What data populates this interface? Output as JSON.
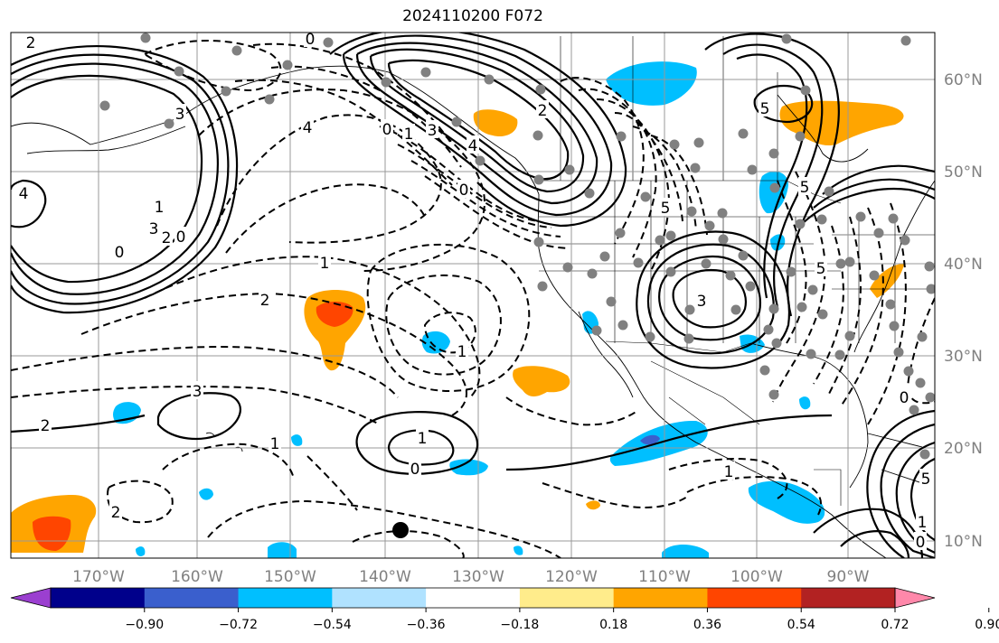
{
  "chart_data": {
    "type": "contour map",
    "title": "2024110200 F072",
    "x_ticks": [
      "170°W",
      "160°W",
      "150°W",
      "140°W",
      "130°W",
      "120°W",
      "110°W",
      "100°W",
      "90°W"
    ],
    "y_ticks": [
      "60°N",
      "50°N",
      "40°N",
      "30°N",
      "20°N",
      "10°N"
    ],
    "colorbar": {
      "ticks": [
        "−0.90",
        "−0.72",
        "−0.54",
        "−0.36",
        "−0.18",
        "0.18",
        "0.36",
        "0.54",
        "0.72",
        "0.90"
      ],
      "colors": [
        "#9b3fd0",
        "#00008b",
        "#3a5fcd",
        "#00bfff",
        "#b0e2ff",
        "#ffffff",
        "#ffec8b",
        "#ffa500",
        "#ff4500",
        "#b22222",
        "#ff88aa"
      ]
    },
    "contour_labels": [
      "2",
      "0",
      "3",
      "4",
      "0",
      "1",
      "3",
      "4",
      "0",
      "2",
      "5",
      "5",
      "4",
      "1",
      "3",
      "2",
      "0",
      "0",
      "1",
      "2",
      "1",
      "3",
      "5",
      "5",
      "3",
      "2",
      "0",
      "1",
      "1",
      "0",
      "1",
      "2",
      "5",
      "1",
      "0"
    ],
    "station_marker": "large black dot"
  }
}
